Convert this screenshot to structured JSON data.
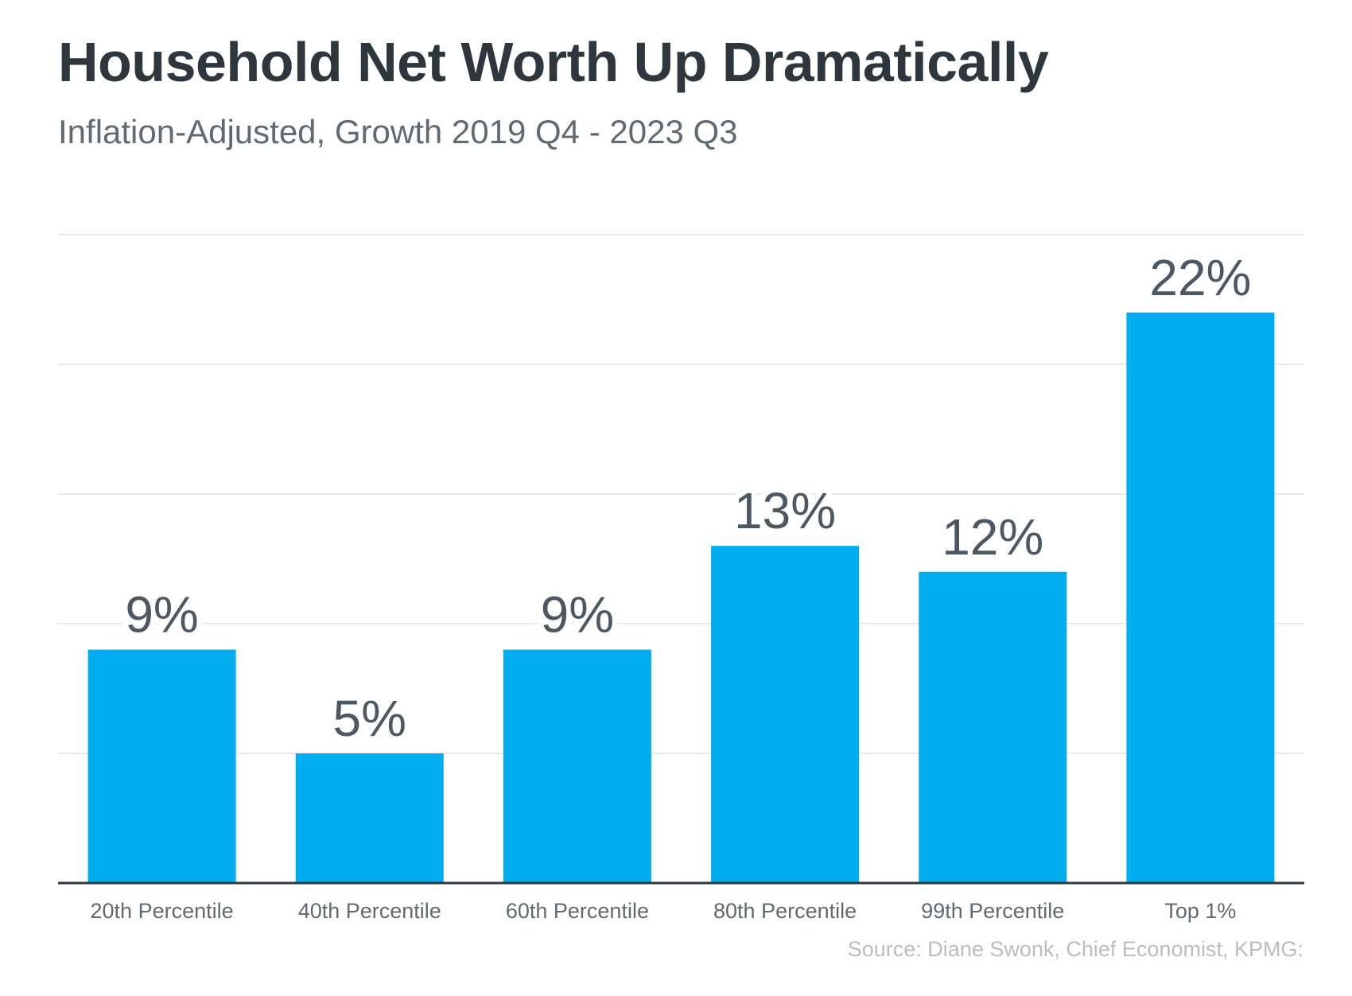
{
  "chart_data": {
    "type": "bar",
    "title": "Household Net Worth Up Dramatically",
    "subtitle": "Inflation-Adjusted, Growth 2019 Q4 - 2023 Q3",
    "categories": [
      "20th Percentile",
      "40th Percentile",
      "60th Percentile",
      "80th Percentile",
      "99th Percentile",
      "Top 1%"
    ],
    "values": [
      9,
      5,
      9,
      13,
      12,
      22
    ],
    "data_labels": [
      "9%",
      "5%",
      "9%",
      "13%",
      "12%",
      "22%"
    ],
    "ylim": [
      0,
      25
    ],
    "grid": true,
    "gridline_values": [
      5,
      10,
      15,
      20,
      25
    ],
    "bar_color": "#00aeef",
    "source": "Source: Diane Swonk, Chief Economist, KPMG:"
  }
}
